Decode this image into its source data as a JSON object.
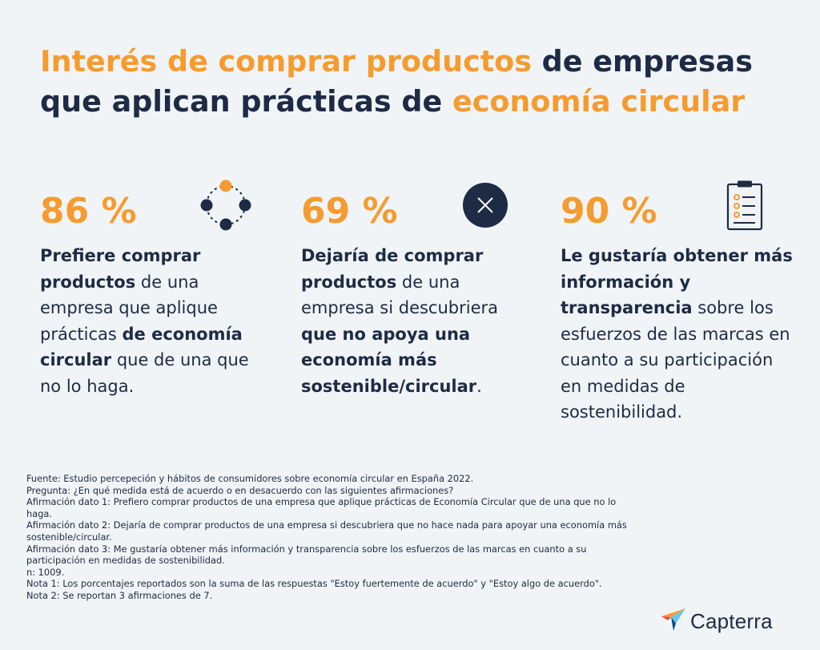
{
  "title": {
    "line1_orange": "Interés de comprar productos",
    "line1_dark": " de empresas",
    "line2_dark": "que aplican prácticas de ",
    "line2_orange": "economía circular"
  },
  "stats": [
    {
      "value": "86 %",
      "icon": "circular-nodes-icon",
      "text": [
        {
          "t": "Prefiere comprar productos",
          "b": true
        },
        {
          "t": " de una empresa que aplique prácticas ",
          "b": false
        },
        {
          "t": "de economía circular",
          "b": true
        },
        {
          "t": " que de una que no lo haga.",
          "b": false
        }
      ]
    },
    {
      "value": "69 %",
      "icon": "x-circle-icon",
      "text": [
        {
          "t": "Dejaría de comprar productos",
          "b": true
        },
        {
          "t": " de una empresa si descubriera ",
          "b": false
        },
        {
          "t": "que no apoya una economía más sostenible/circular",
          "b": true
        },
        {
          "t": ".",
          "b": false
        }
      ]
    },
    {
      "value": "90 %",
      "icon": "clipboard-checklist-icon",
      "text": [
        {
          "t": "Le gustaría obtener más información y transparencia",
          "b": true
        },
        {
          "t": " sobre los esfuerzos de las marcas en cuanto a su participación en medidas de sostenibilidad.",
          "b": false
        }
      ]
    }
  ],
  "footnotes": [
    "Fuente: Estudio percepeción y hábitos de consumidores sobre economía circular en España 2022.",
    "Pregunta: ¿En qué medida está de acuerdo o en desacuerdo con las siguientes afirmaciones?",
    "Afirmación dato 1: Prefiero comprar productos de una empresa que aplique prácticas de Economía Circular que de una que no lo haga.",
    "Afirmación dato 2: Dejaría de comprar productos de una empresa si descubriera que no hace nada para apoyar una economía más sostenible/circular.",
    "Afirmación dato 3: Me gustaría obtener más información y transparencia sobre los esfuerzos de las marcas en cuanto a su participación en medidas de sostenibilidad.",
    "n: 1009.",
    "Nota 1: Los porcentajes reportados son la suma de las respuestas \"Estoy fuertemente de acuerdo\" y \"Estoy algo de acuerdo\".",
    "Nota 2: Se reportan 3 afirmaciones de 7."
  ],
  "brand": {
    "name": "Capterra",
    "icon": "capterra-logo-icon"
  },
  "colors": {
    "accent": "#f59b2f",
    "dark": "#1d2b45",
    "background": "#f1f4f6"
  }
}
